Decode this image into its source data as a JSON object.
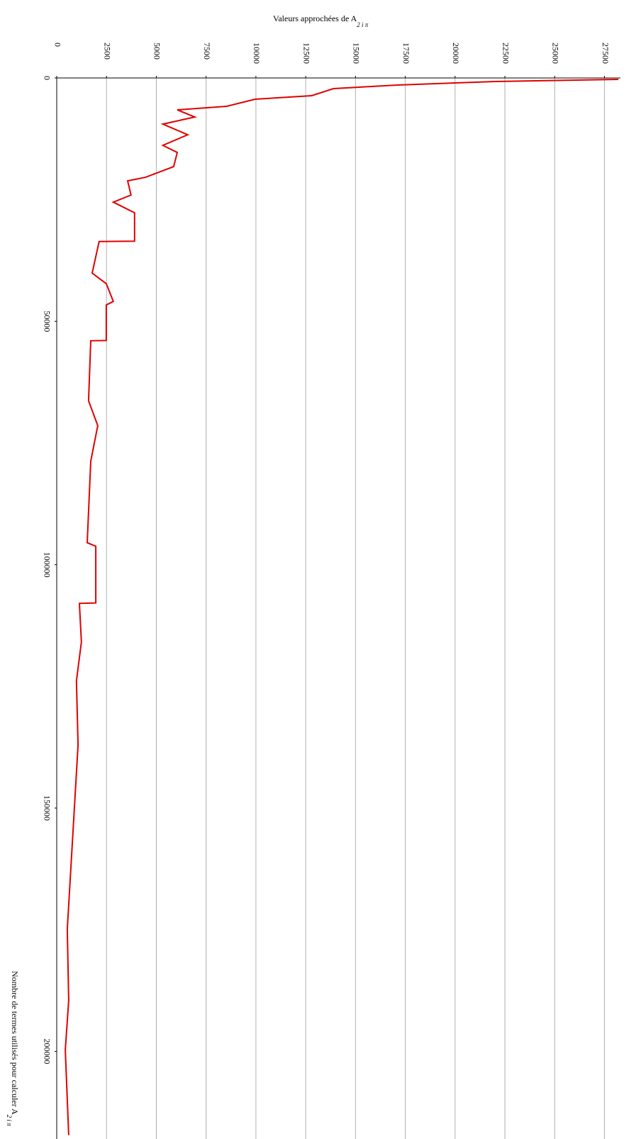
{
  "chart_data": {
    "type": "line",
    "title": "Valeurs approchées de A",
    "title_sub": "2 i π",
    "x_label": "Nombre de termes utilisés pour calculer A",
    "x_label_sub": "2 i π",
    "xlim": [
      0,
      218000
    ],
    "xticks": [
      0,
      50000,
      100000,
      150000,
      200000
    ],
    "ylim": [
      0,
      28300
    ],
    "yticks": [
      0,
      2500,
      5000,
      7500,
      10000,
      12500,
      15000,
      17500,
      20000,
      22500,
      25000,
      27500
    ],
    "grid": true,
    "series": [
      {
        "color": "#e00000",
        "x": [
          290,
          730,
          1460,
          2190,
          3640,
          4370,
          5830,
          6560,
          8020,
          9480,
          11660,
          13850,
          15300,
          18220,
          20410,
          21140,
          24050,
          25510,
          27700,
          33530,
          33600,
          40090,
          42270,
          45920,
          46650,
          53940,
          54000,
          66330,
          71430,
          78720,
          95480,
          96210,
          107870,
          107950,
          115890,
          123910,
          137030,
          174930,
          189500,
          199700,
          217200
        ],
        "values": [
          28200,
          22000,
          17100,
          13900,
          12800,
          9960,
          8530,
          6050,
          6930,
          5330,
          6580,
          5330,
          6050,
          5870,
          4450,
          3560,
          3730,
          2840,
          3910,
          3910,
          2130,
          1780,
          2490,
          2840,
          2490,
          2490,
          1710,
          1600,
          2060,
          1710,
          1530,
          1960,
          1960,
          1140,
          1240,
          990,
          1070,
          530,
          600,
          430,
          600
        ]
      }
    ]
  }
}
